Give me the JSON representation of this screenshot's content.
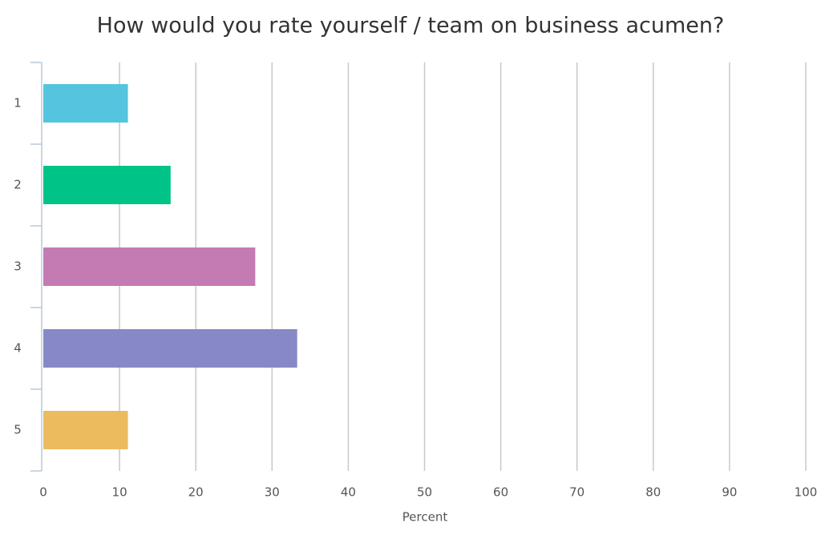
{
  "chart_data": {
    "type": "hbar",
    "title": "How would you rate yourself / team on business acumen?",
    "categories": [
      "1",
      "2",
      "3",
      "4",
      "5"
    ],
    "values": [
      11.1,
      16.7,
      27.8,
      33.3,
      11.1
    ],
    "colors": [
      "#55c4de",
      "#00c487",
      "#c47bb3",
      "#8689c6",
      "#ebbb5e"
    ],
    "x_label": "Percent",
    "xlim": [
      0,
      100
    ],
    "xticks": [
      0,
      10,
      20,
      30,
      40,
      50,
      60,
      70,
      80,
      90,
      100
    ],
    "grid": true
  }
}
